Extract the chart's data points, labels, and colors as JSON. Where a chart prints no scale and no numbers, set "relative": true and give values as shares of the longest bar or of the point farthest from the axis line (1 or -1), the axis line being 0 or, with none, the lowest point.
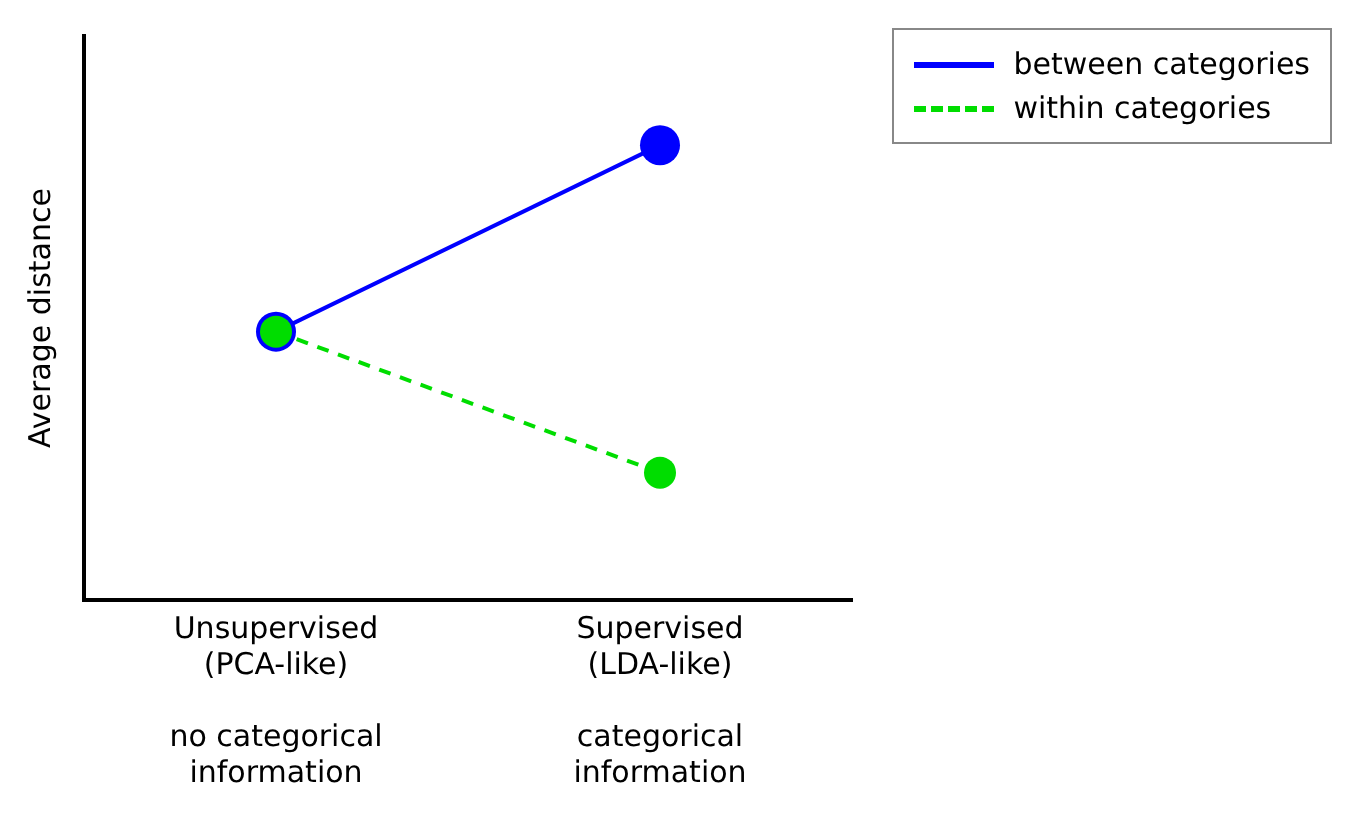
{
  "chart_data": {
    "type": "line",
    "ylabel": "Average distance",
    "relative": true,
    "categories": [
      "Unsupervised\n(PCA-like)\n\nno categorical\ninformation",
      "Supervised\n(LDA-like)\n\ncategorical\ninformation"
    ],
    "series": [
      {
        "name": "between categories",
        "color": "#0000ff",
        "values": [
          0.59,
          1
        ],
        "line_style": "solid"
      },
      {
        "name": "within categories",
        "color": "#00dd00",
        "values": [
          0.59,
          0.28
        ],
        "line_style": "dashed"
      }
    ],
    "marker": "circle",
    "legend": "top right",
    "grid": false
  }
}
